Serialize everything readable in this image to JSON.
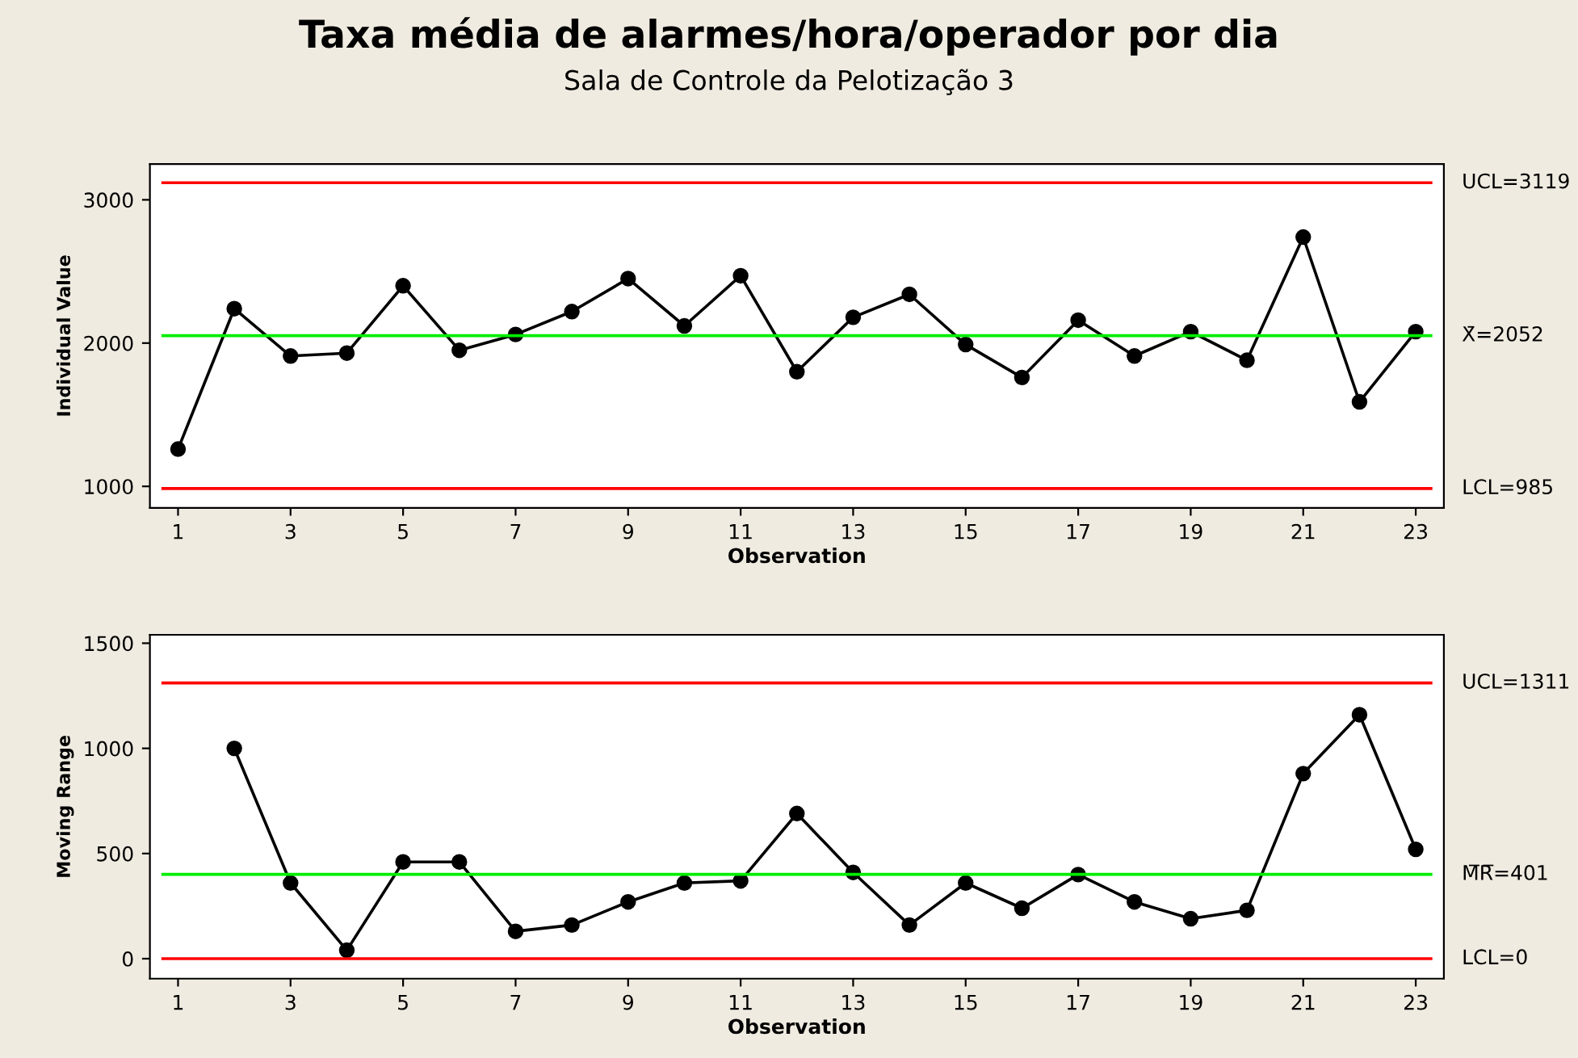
{
  "chart_data": [
    {
      "type": "line",
      "title": "Taxa média de alarmes/hora/operador por dia",
      "subtitle": "Sala de Controle da Pelotização 3",
      "xlabel": "Observation",
      "ylabel": "Individual Value",
      "x": [
        1,
        2,
        3,
        4,
        5,
        6,
        7,
        8,
        9,
        10,
        11,
        12,
        13,
        14,
        15,
        16,
        17,
        18,
        19,
        20,
        21,
        22,
        23
      ],
      "series": [
        {
          "color": "#000000",
          "values": [
            1260,
            2240,
            1910,
            1930,
            2400,
            1950,
            2060,
            2220,
            2450,
            2120,
            2470,
            1800,
            2180,
            2340,
            1990,
            1760,
            2160,
            1910,
            2080,
            1880,
            2740,
            1590,
            2080
          ]
        }
      ],
      "xlim": [
        0.5,
        23.5
      ],
      "xticks": [
        1,
        3,
        5,
        7,
        9,
        11,
        13,
        15,
        17,
        19,
        21,
        23
      ],
      "ylim": [
        850,
        3250
      ],
      "yticks": [
        1000,
        2000,
        3000
      ],
      "ref_lines": [
        {
          "axis": "y",
          "value": 3119,
          "label": "UCL=3119",
          "color": "#ff0000"
        },
        {
          "axis": "y",
          "value": 2052,
          "label": "X̄=2052",
          "color": "#00ee00"
        },
        {
          "axis": "y",
          "value": 985,
          "label": "LCL=985",
          "color": "#ff0000"
        }
      ],
      "marker": "circle",
      "grid": false,
      "legend": false
    },
    {
      "type": "line",
      "xlabel": "Observation",
      "ylabel": "Moving Range",
      "series": [
        {
          "color": "#000000",
          "x": [
            2,
            3,
            4,
            5,
            6,
            7,
            8,
            9,
            10,
            11,
            12,
            13,
            14,
            15,
            16,
            17,
            18,
            19,
            20,
            21,
            22,
            23
          ],
          "values": [
            1000,
            360,
            40,
            460,
            460,
            130,
            160,
            270,
            360,
            370,
            690,
            410,
            160,
            360,
            240,
            400,
            270,
            190,
            230,
            880,
            1160,
            520
          ]
        }
      ],
      "xlim": [
        0.5,
        23.5
      ],
      "xticks": [
        1,
        3,
        5,
        7,
        9,
        11,
        13,
        15,
        17,
        19,
        21,
        23
      ],
      "ylim": [
        -95,
        1540
      ],
      "yticks": [
        0,
        500,
        1000,
        1500
      ],
      "ref_lines": [
        {
          "axis": "y",
          "value": 1311,
          "label": "UCL=1311",
          "color": "#ff0000"
        },
        {
          "axis": "y",
          "value": 401,
          "label": "M̅R̅=401",
          "color": "#00ee00"
        },
        {
          "axis": "y",
          "value": 0,
          "label": "LCL=0",
          "color": "#ff0000"
        }
      ],
      "marker": "circle",
      "grid": false,
      "legend": false
    }
  ]
}
